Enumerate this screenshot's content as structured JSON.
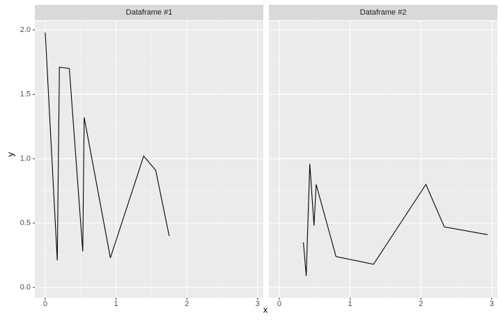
{
  "chart_data": [
    {
      "type": "line",
      "title": "Dataframe #1",
      "xlabel": "x",
      "ylabel": "y",
      "x": [
        0,
        0.17,
        0.2,
        0.34,
        0.53,
        0.55,
        0.92,
        1.39,
        1.56,
        1.75
      ],
      "values": [
        1.98,
        0.21,
        1.71,
        1.7,
        0.28,
        1.32,
        0.23,
        1.02,
        0.91,
        0.4
      ],
      "color": "#000000",
      "xlim": [
        -0.147,
        3.08
      ],
      "ylim": [
        -0.08,
        2.07
      ],
      "xticks": [
        0,
        1,
        2,
        3
      ],
      "yticks": [
        {
          "value": 0,
          "label": "0.0"
        },
        {
          "value": 0.5,
          "label": "0.5"
        },
        {
          "value": 1,
          "label": "1.0"
        },
        {
          "value": 1.5,
          "label": "1.5"
        },
        {
          "value": 2,
          "label": "2.0"
        }
      ],
      "grid": true
    },
    {
      "type": "line",
      "title": "Dataframe #2",
      "x": [
        0.34,
        0.38,
        0.43,
        0.49,
        0.52,
        0.8,
        1.33,
        2.07,
        2.33,
        2.94
      ],
      "values": [
        0.35,
        0.09,
        0.96,
        0.48,
        0.8,
        0.24,
        0.18,
        0.8,
        0.47,
        0.41
      ],
      "color": "#000000",
      "xlim": [
        -0.147,
        3.08
      ],
      "ylim": [
        -0.08,
        2.07
      ],
      "xticks": [
        0,
        1,
        2,
        3
      ],
      "yticks": [
        {
          "value": 0,
          "label": "0.0"
        },
        {
          "value": 0.5,
          "label": "0.5"
        },
        {
          "value": 1,
          "label": "1.0"
        },
        {
          "value": 1.5,
          "label": "1.5"
        },
        {
          "value": 2,
          "label": "2.0"
        }
      ],
      "grid": true
    }
  ]
}
